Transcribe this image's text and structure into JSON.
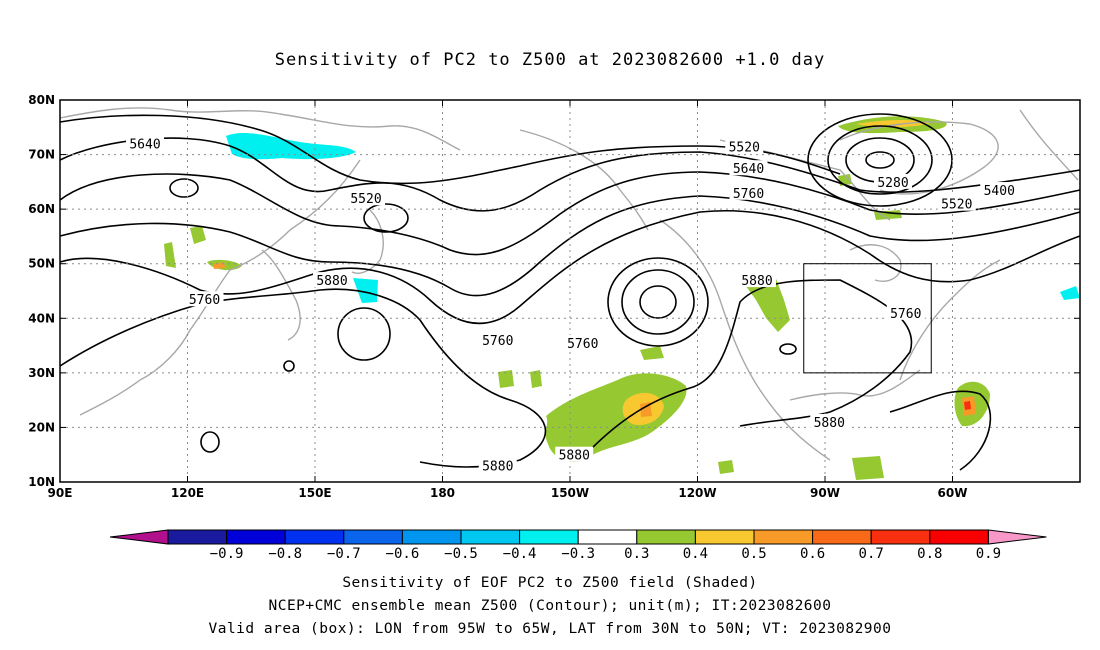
{
  "title": "Sensitivity of PC2 to Z500 at 2023082600 +1.0 day",
  "map": {
    "lon_range": [
      90,
      330
    ],
    "lat_range": [
      10,
      80
    ],
    "lat_labels": [
      {
        "lat": 80,
        "text": "80N"
      },
      {
        "lat": 70,
        "text": "70N"
      },
      {
        "lat": 60,
        "text": "60N"
      },
      {
        "lat": 50,
        "text": "50N"
      },
      {
        "lat": 40,
        "text": "40N"
      },
      {
        "lat": 30,
        "text": "30N"
      },
      {
        "lat": 20,
        "text": "20N"
      },
      {
        "lat": 10,
        "text": "10N"
      }
    ],
    "lon_labels": [
      {
        "lon": 90,
        "text": "90E"
      },
      {
        "lon": 120,
        "text": "120E"
      },
      {
        "lon": 150,
        "text": "150E"
      },
      {
        "lon": 180,
        "text": "180"
      },
      {
        "lon": 210,
        "text": "150W"
      },
      {
        "lon": 240,
        "text": "120W"
      },
      {
        "lon": 270,
        "text": "90W"
      },
      {
        "lon": 300,
        "text": "60W"
      }
    ],
    "valid_box": {
      "lon_min": 265,
      "lon_max": 295,
      "lat_min": 30,
      "lat_max": 50
    },
    "contour_labels": [
      {
        "text": "5640",
        "lon": 110,
        "lat": 72
      },
      {
        "text": "5520",
        "lon": 162,
        "lat": 62
      },
      {
        "text": "5520",
        "lon": 251,
        "lat": 71.5
      },
      {
        "text": "5640",
        "lon": 252,
        "lat": 67.5
      },
      {
        "text": "5760",
        "lon": 252,
        "lat": 63
      },
      {
        "text": "5280",
        "lon": 286,
        "lat": 65
      },
      {
        "text": "5400",
        "lon": 311,
        "lat": 63.5
      },
      {
        "text": "5520",
        "lon": 301,
        "lat": 61
      },
      {
        "text": "5760",
        "lon": 124,
        "lat": 43.5
      },
      {
        "text": "5880",
        "lon": 154,
        "lat": 47
      },
      {
        "text": "5760",
        "lon": 193,
        "lat": 36
      },
      {
        "text": "5760",
        "lon": 213,
        "lat": 35.5
      },
      {
        "text": "5880",
        "lon": 254,
        "lat": 47
      },
      {
        "text": "5760",
        "lon": 289,
        "lat": 41
      },
      {
        "text": "5880",
        "lon": 271,
        "lat": 21
      },
      {
        "text": "5880",
        "lon": 193,
        "lat": 13
      },
      {
        "text": "5880",
        "lon": 211,
        "lat": 15
      }
    ]
  },
  "colorbar": {
    "labels": [
      "−0.9",
      "−0.8",
      "−0.7",
      "−0.6",
      "−0.5",
      "−0.4",
      "−0.3",
      "0.3",
      "0.4",
      "0.5",
      "0.6",
      "0.7",
      "0.8",
      "0.9"
    ],
    "colors": [
      "#1a1a9e",
      "#0000d8",
      "#0030f0",
      "#0a64ec",
      "#0096f0",
      "#00c8f0",
      "#00f0f0",
      "#ffffff",
      "#96c832",
      "#f8c830",
      "#f89a28",
      "#f86a18",
      "#f83010",
      "#f80000"
    ],
    "left_tip_color": "#b0108c",
    "right_tip_color": "#f898c8"
  },
  "captions": [
    "Sensitivity of EOF PC2 to Z500 field (Shaded)",
    "NCEP+CMC ensemble mean Z500 (Contour); unit(m); IT:2023082600",
    "Valid area (box): LON from 95W to 65W, LAT from 30N to 50N; VT: 2023082900"
  ],
  "colors": {
    "coast": "#a8a8a8",
    "grid": "#8c8c8c",
    "contour": "#000000",
    "shade_green": "#96c832",
    "shade_yellow": "#f8c830",
    "shade_orange": "#f89a28",
    "shade_cyan": "#00f0f0"
  }
}
